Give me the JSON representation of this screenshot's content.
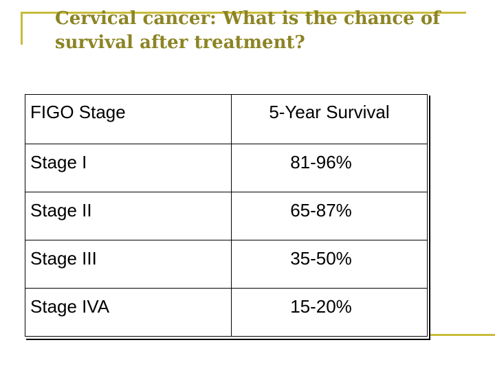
{
  "slide": {
    "title_line1": "Cervical cancer: What is the chance of",
    "title_line2": "survival after treatment?"
  },
  "table": {
    "headers": {
      "stage": "FIGO Stage",
      "survival": "5-Year Survival"
    },
    "rows": [
      {
        "stage": "Stage I",
        "survival": "81-96%"
      },
      {
        "stage": "Stage II",
        "survival": "65-87%"
      },
      {
        "stage": "Stage III",
        "survival": "35-50%"
      },
      {
        "stage": "Stage IVA",
        "survival": "15-20%"
      }
    ]
  },
  "colors": {
    "title": "#8c8424",
    "frame_accent": "#c8bb3a",
    "table_border": "#000000"
  }
}
